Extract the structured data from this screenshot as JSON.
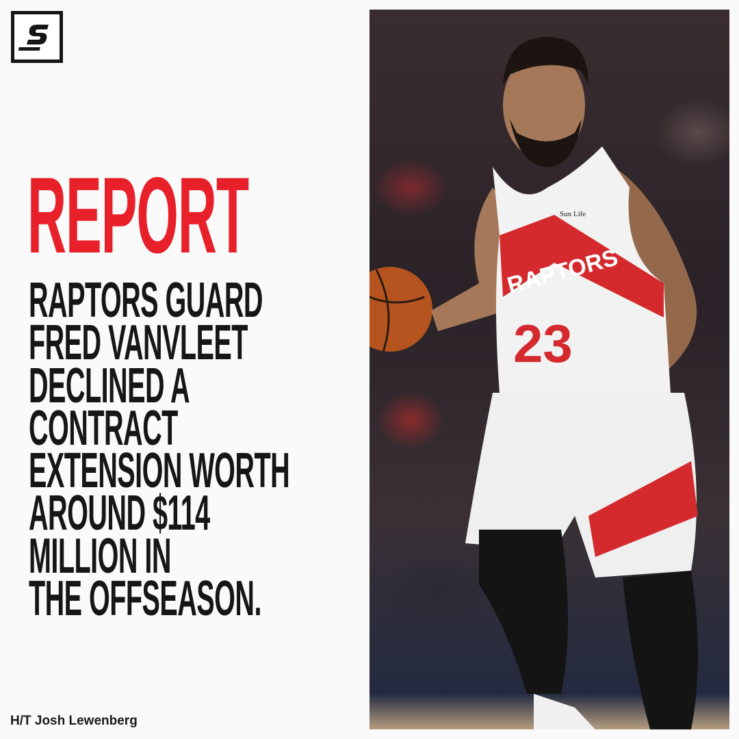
{
  "brand": {
    "logo_letter": "S",
    "logo_icon": "thescore-logo"
  },
  "headline": {
    "label": "REPORT",
    "color": "#e8202a"
  },
  "body": {
    "lines": [
      "RAPTORS GUARD",
      "FRED VANVLEET",
      "DECLINED A",
      "CONTRACT",
      "EXTENSION WORTH",
      "AROUND $114",
      "MILLION IN",
      "THE OFFSEASON."
    ]
  },
  "credit": "H/T Josh Lewenberg",
  "photo": {
    "jersey_text": "RAPTORS",
    "jersey_number": "23",
    "sponsor": "Sun Life"
  }
}
